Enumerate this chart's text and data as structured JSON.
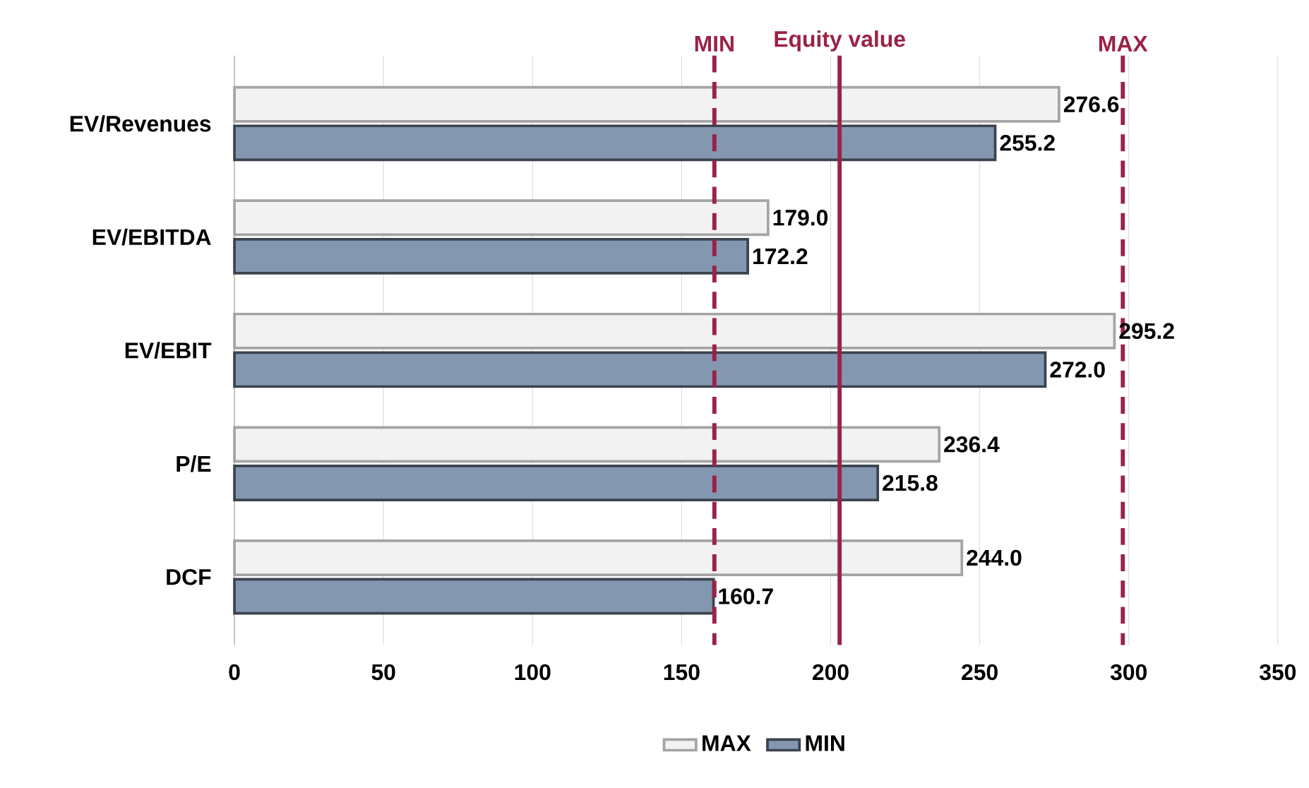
{
  "chart_data": {
    "type": "bar",
    "orientation": "horizontal",
    "categories": [
      "EV/Revenues",
      "EV/EBITDA",
      "EV/EBIT",
      "P/E",
      "DCF"
    ],
    "series": [
      {
        "name": "MAX",
        "color": "#f2f2f2",
        "values": [
          276.6,
          179.0,
          295.2,
          236.4,
          244.0
        ],
        "value_labels": [
          "276.6",
          "179.0",
          "295.2",
          "236.4",
          "244.0"
        ]
      },
      {
        "name": "MIN",
        "color": "#8497b0",
        "values": [
          255.2,
          172.2,
          272.0,
          215.8,
          160.7
        ],
        "value_labels": [
          "255.2",
          "172.2",
          "272.0",
          "215.8",
          "160.7"
        ]
      }
    ],
    "xlim": [
      0,
      350
    ],
    "xticks": [
      0,
      50,
      100,
      150,
      200,
      250,
      300,
      350
    ],
    "grid": "x",
    "legend": "bottom",
    "ref_lines": [
      {
        "axis": "x",
        "value": 161,
        "label": "MIN",
        "color": "#9b2246",
        "line_style": "dashed"
      },
      {
        "axis": "x",
        "value": 203,
        "label": "Equity value",
        "color": "#9b2246",
        "line_style": "solid"
      },
      {
        "axis": "x",
        "value": 298,
        "label": "MAX",
        "color": "#9b2246",
        "line_style": "dashed"
      }
    ]
  }
}
